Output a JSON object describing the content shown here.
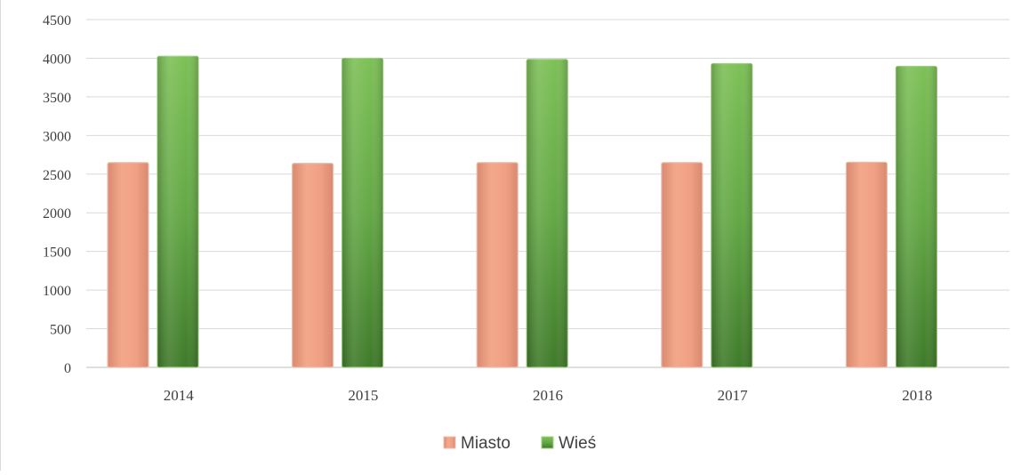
{
  "chart_data": {
    "type": "bar",
    "title": "",
    "xlabel": "",
    "ylabel": "",
    "categories": [
      "2014",
      "2015",
      "2016",
      "2017",
      "2018"
    ],
    "series": [
      {
        "name": "Miasto",
        "values": [
          2650,
          2640,
          2650,
          2650,
          2655
        ]
      },
      {
        "name": "Wieś",
        "values": [
          4025,
          4000,
          3985,
          3930,
          3895
        ]
      }
    ],
    "ylim": [
      0,
      4500
    ],
    "yticks": [
      0,
      500,
      1000,
      1500,
      2000,
      2500,
      3000,
      3500,
      4000,
      4500
    ],
    "grid": true,
    "legend_position": "bottom",
    "colors": {
      "Miasto": "#f0a084",
      "Wieś": "#6aae4a"
    }
  }
}
